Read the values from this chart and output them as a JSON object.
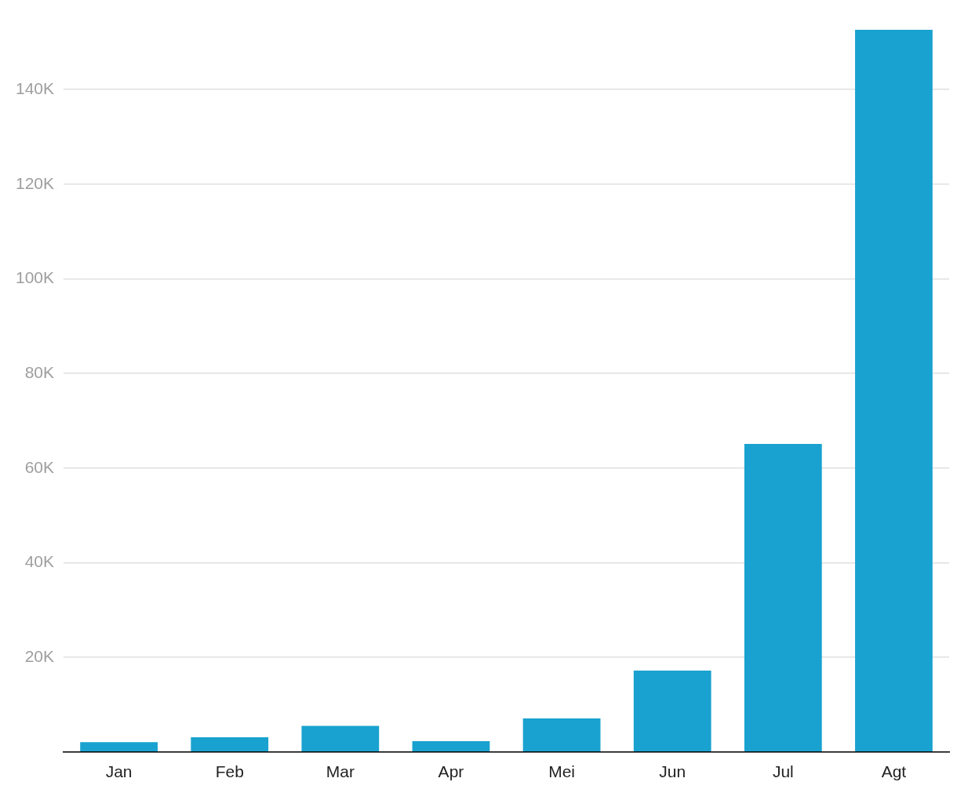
{
  "chart_data": {
    "type": "bar",
    "categories": [
      "Jan",
      "Feb",
      "Mar",
      "Apr",
      "Mei",
      "Jun",
      "Jul",
      "Agt"
    ],
    "values": [
      2100,
      3100,
      5500,
      2300,
      7100,
      17200,
      65100,
      152600
    ],
    "color": "#19a2cf",
    "ylim": [
      0,
      152600
    ],
    "yticks": [
      {
        "value": 0,
        "label": null
      },
      {
        "value": 20000,
        "label": "20K"
      },
      {
        "value": 40000,
        "label": "40K"
      },
      {
        "value": 60000,
        "label": "60K"
      },
      {
        "value": 80000,
        "label": "80K"
      },
      {
        "value": 100000,
        "label": "100K"
      },
      {
        "value": 120000,
        "label": "120K"
      },
      {
        "value": 140000,
        "label": "140K"
      }
    ],
    "grid": "y",
    "legend": false
  }
}
